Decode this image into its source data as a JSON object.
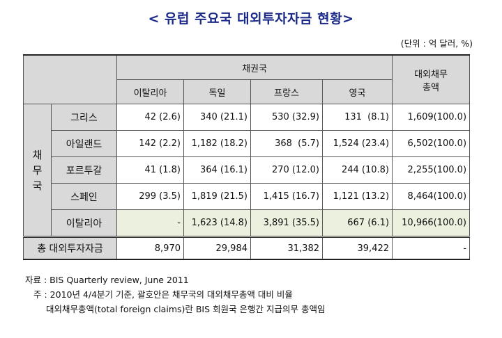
{
  "title": "< 유럽 주요국 대외투자자금 현황>",
  "unit": "(단위 : 억 달러, %)",
  "table": {
    "creditor_header": "채권국",
    "total_debt_header_1": "대외채무",
    "total_debt_header_2": "총액",
    "debtor_header": "채무국",
    "creditors": [
      "이탈리아",
      "독일",
      "프랑스",
      "영국"
    ],
    "rows": [
      {
        "label": "그리스",
        "cells": [
          "42 (2.6)",
          "340 (21.1)",
          "530 (32.9)",
          "131  (8.1)"
        ],
        "total": "1,609(100.0)"
      },
      {
        "label": "아일랜드",
        "cells": [
          "142 (2.2)",
          "1,182 (18.2)",
          "368  (5.7)",
          "1,524 (23.4)"
        ],
        "total": "6,502(100.0)"
      },
      {
        "label": "포르투갈",
        "cells": [
          "41 (1.8)",
          "364 (16.1)",
          "270 (12.0)",
          "244 (10.8)"
        ],
        "total": "2,255(100.0)"
      },
      {
        "label": "스페인",
        "cells": [
          "299 (3.5)",
          "1,819 (21.5)",
          "1,415 (16.7)",
          "1,121 (13.2)"
        ],
        "total": "8,464(100.0)"
      },
      {
        "label": "이탈리아",
        "cells": [
          "-",
          "1,623 (14.8)",
          "3,891 (35.5)",
          "667 (6.1)"
        ],
        "total": "10,966(100.0)"
      }
    ],
    "total_row": {
      "label": "총 대외투자자금",
      "cells": [
        "8,970",
        "29,984",
        "31,382",
        "39,422"
      ],
      "total": "-"
    }
  },
  "notes": {
    "source": "자료 : BIS Quarterly review, June 2011",
    "note1": "주 : 2010년 4/4분기 기준, 괄호안은 채무국의 대외채무총액 대비 비율",
    "note2": "대외채무총액(total foreign claims)란 BIS 회원국 은행간 지급의무 총액임"
  }
}
